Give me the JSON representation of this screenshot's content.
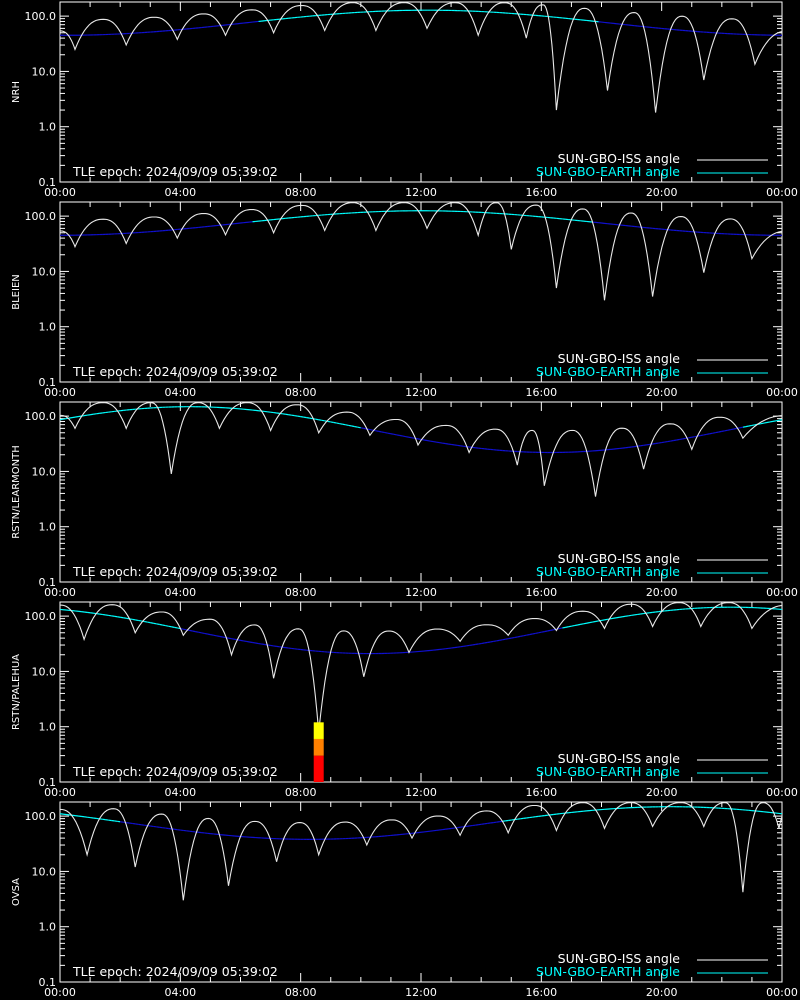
{
  "chart_data": [
    {
      "type": "line",
      "ylabel": "NRH",
      "xlim": [
        "00:00",
        "24:00"
      ],
      "ylim": [
        0.1,
        180
      ],
      "yscale": "log",
      "x_tick_labels": [
        "00:00",
        "04:00",
        "08:00",
        "12:00",
        "16:00",
        "20:00",
        "00:00"
      ],
      "y_tick_labels": [
        "100.0",
        "10.0",
        "1.0",
        "0.1"
      ],
      "annotation": "TLE epoch: 2024/09/09 05:39:02",
      "legend": [
        "SUN-GBO-ISS angle",
        "SUN-GBO-EARTH angle"
      ],
      "legend_placement": "bottom-right",
      "earth_angle": {
        "min_hour": 0.0,
        "max_hour": 12.2,
        "min_value": 45,
        "max_value": 128
      },
      "iss_angle": {
        "orbit_minima_hours": [
          0.5,
          2.2,
          3.9,
          5.5,
          7.1,
          8.8,
          10.5,
          12.2,
          13.9,
          15.5,
          16.5,
          18.2,
          19.8,
          21.4,
          23.1
        ],
        "orbit_minima_values": [
          25,
          30,
          38,
          45,
          50,
          55,
          55,
          60,
          45,
          40,
          2.0,
          4.5,
          1.8,
          7.0,
          13.5
        ]
      },
      "overlay_color": "#00ffff",
      "overlay_dark_color": "#1010d0"
    },
    {
      "type": "line",
      "ylabel": "BLEIEN",
      "xlim": [
        "00:00",
        "24:00"
      ],
      "ylim": [
        0.1,
        180
      ],
      "yscale": "log",
      "x_tick_labels": [
        "00:00",
        "04:00",
        "08:00",
        "12:00",
        "16:00",
        "20:00",
        "00:00"
      ],
      "y_tick_labels": [
        "100.0",
        "10.0",
        "1.0",
        "0.1"
      ],
      "annotation": "TLE epoch: 2024/09/09 05:39:02",
      "legend": [
        "SUN-GBO-ISS angle",
        "SUN-GBO-EARTH angle"
      ],
      "legend_placement": "bottom-right",
      "earth_angle": {
        "min_hour": 0.0,
        "max_hour": 12.0,
        "min_value": 45,
        "max_value": 125
      },
      "iss_angle": {
        "orbit_minima_hours": [
          0.5,
          2.2,
          3.9,
          5.5,
          7.1,
          8.8,
          10.5,
          12.2,
          13.9,
          15.0,
          16.5,
          18.1,
          19.7,
          21.4,
          23.0
        ],
        "orbit_minima_values": [
          28,
          32,
          40,
          46,
          50,
          55,
          55,
          60,
          45,
          25,
          5.0,
          3.0,
          3.5,
          9.5,
          17
        ]
      },
      "overlay_color": "#00ffff",
      "overlay_dark_color": "#1010d0"
    },
    {
      "type": "line",
      "ylabel": "RSTN/LEARMONTH",
      "xlim": [
        "00:00",
        "24:00"
      ],
      "ylim": [
        0.1,
        180
      ],
      "yscale": "log",
      "x_tick_labels": [
        "00:00",
        "04:00",
        "08:00",
        "12:00",
        "16:00",
        "20:00",
        "00:00"
      ],
      "y_tick_labels": [
        "100.0",
        "10.0",
        "1.0",
        "0.1"
      ],
      "annotation": "TLE epoch: 2024/09/09 05:39:02",
      "legend": [
        "SUN-GBO-ISS angle",
        "SUN-GBO-EARTH angle"
      ],
      "legend_placement": "bottom-right",
      "earth_angle": {
        "min_hour": 16.3,
        "max_hour": 4.3,
        "min_value": 22,
        "max_value": 148
      },
      "iss_angle": {
        "orbit_minima_hours": [
          0.5,
          2.2,
          3.7,
          5.3,
          7.0,
          8.6,
          10.3,
          11.9,
          13.6,
          15.2,
          16.1,
          17.8,
          19.4,
          21.0,
          22.7
        ],
        "orbit_minima_values": [
          60,
          60,
          9.0,
          60,
          55,
          50,
          45,
          30,
          22,
          13,
          5.5,
          3.5,
          11,
          25,
          40
        ]
      },
      "overlay_color": "#00ffff",
      "overlay_dark_color": "#1010d0"
    },
    {
      "type": "line",
      "ylabel": "RSTN/PALEHUA",
      "xlim": [
        "00:00",
        "24:00"
      ],
      "ylim": [
        0.1,
        180
      ],
      "yscale": "log",
      "x_tick_labels": [
        "00:00",
        "04:00",
        "08:00",
        "12:00",
        "16:00",
        "20:00",
        "00:00"
      ],
      "y_tick_labels": [
        "100.0",
        "10.0",
        "1.0",
        "0.1"
      ],
      "annotation": "TLE epoch: 2024/09/09 05:39:02",
      "legend": [
        "SUN-GBO-ISS angle",
        "SUN-GBO-EARTH angle"
      ],
      "legend_placement": "bottom-right",
      "earth_angle": {
        "min_hour": 10.3,
        "max_hour": 22.3,
        "min_value": 21,
        "max_value": 145
      },
      "iss_angle": {
        "orbit_minima_hours": [
          0.8,
          2.5,
          4.1,
          5.7,
          7.1,
          8.6,
          10.1,
          11.6,
          13.3,
          14.9,
          16.5,
          18.1,
          19.7,
          21.3,
          23.0
        ],
        "orbit_minima_values": [
          38,
          50,
          45,
          20,
          7.5,
          0.8,
          8.0,
          22,
          35,
          45,
          55,
          60,
          65,
          65,
          60
        ]
      },
      "event_bar": {
        "hour": 8.6,
        "segments": [
          {
            "from": 0.1,
            "to": 0.3,
            "color": "#ff0000"
          },
          {
            "from": 0.3,
            "to": 0.6,
            "color": "#ff8000"
          },
          {
            "from": 0.6,
            "to": 1.2,
            "color": "#ffff00"
          }
        ]
      },
      "overlay_color": "#00ffff",
      "overlay_dark_color": "#1010d0"
    },
    {
      "type": "line",
      "ylabel": "OVSA",
      "xlim": [
        "00:00",
        "24:00"
      ],
      "ylim": [
        0.1,
        180
      ],
      "yscale": "log",
      "x_tick_labels": [
        "00:00",
        "04:00",
        "08:00",
        "12:00",
        "16:00",
        "20:00",
        "00:00"
      ],
      "y_tick_labels": [
        "100.0",
        "10.0",
        "1.0",
        "0.1"
      ],
      "annotation": "TLE epoch: 2024/09/09 05:39:02",
      "legend": [
        "SUN-GBO-ISS angle",
        "SUN-GBO-EARTH angle"
      ],
      "legend_placement": "bottom-right",
      "earth_angle": {
        "min_hour": 8.3,
        "max_hour": 20.3,
        "min_value": 38,
        "max_value": 148
      },
      "iss_angle": {
        "orbit_minima_hours": [
          0.9,
          2.5,
          4.1,
          5.6,
          7.2,
          8.6,
          10.2,
          11.7,
          13.3,
          14.9,
          16.5,
          18.1,
          19.7,
          21.4,
          22.7,
          23.9
        ],
        "orbit_minima_values": [
          20,
          12,
          3.0,
          5.5,
          15,
          20,
          30,
          40,
          45,
          50,
          55,
          60,
          65,
          65,
          4.2,
          60
        ]
      },
      "overlay_color": "#00ffff",
      "overlay_dark_color": "#1010d0"
    }
  ]
}
